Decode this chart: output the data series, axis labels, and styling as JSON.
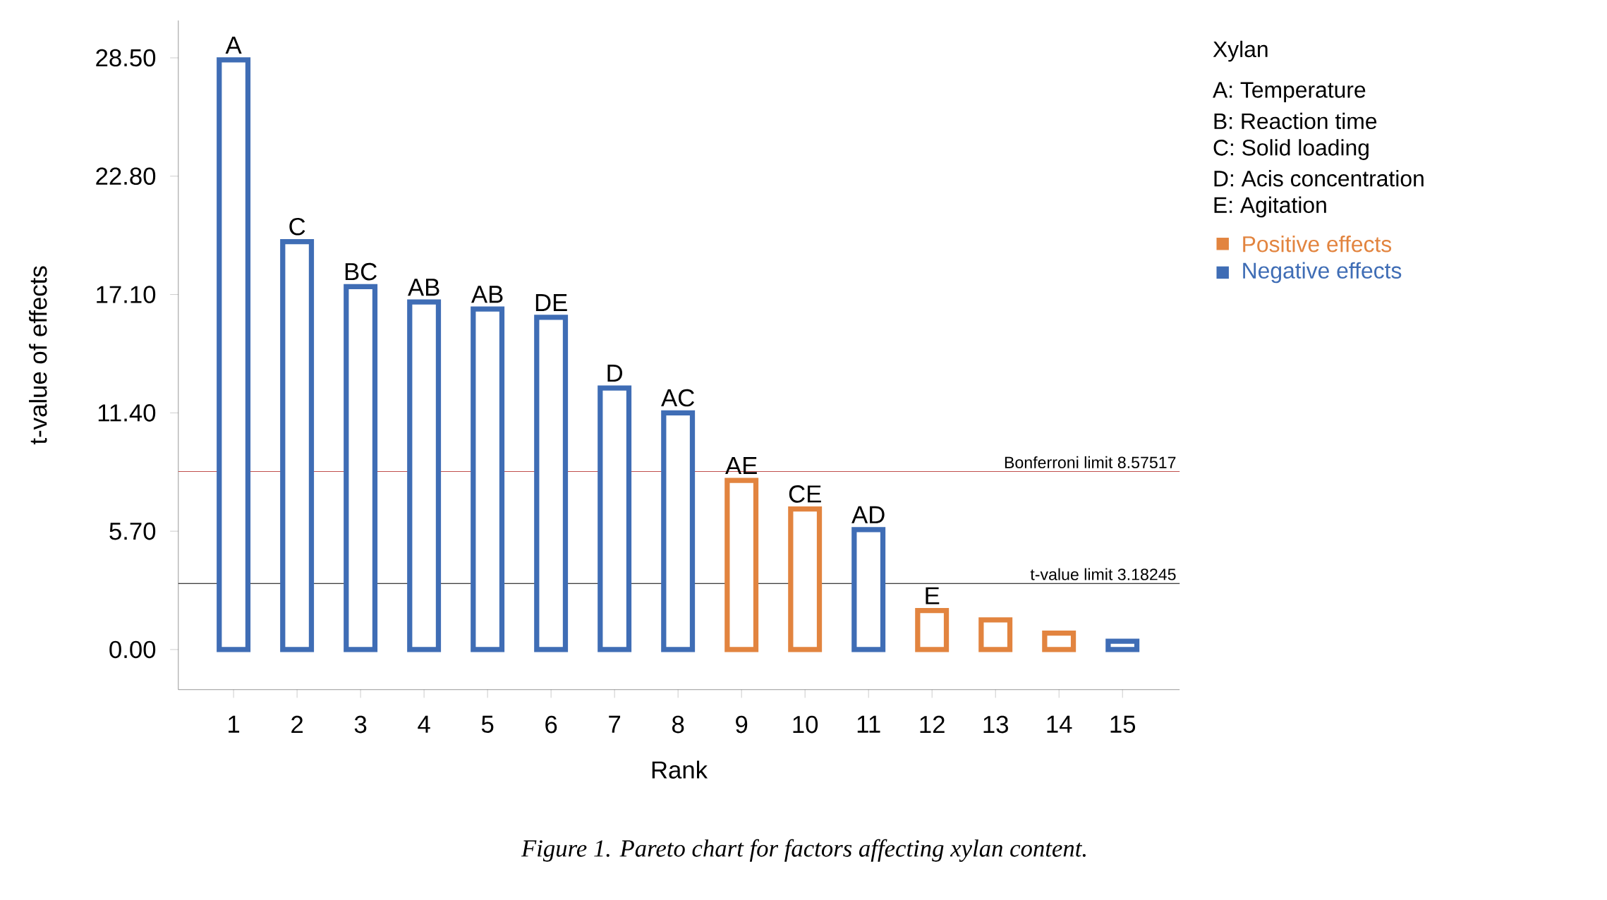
{
  "chart_data": {
    "type": "bar",
    "xlabel": "Rank",
    "ylabel": "t-value of effects",
    "legend_title": "Xylan",
    "x": [
      1,
      2,
      3,
      4,
      5,
      6,
      7,
      8,
      9,
      10,
      11,
      12,
      13,
      14,
      15
    ],
    "series": [
      {
        "name": "Positive effects",
        "color": "#e2843f",
        "values": [
          null,
          null,
          null,
          null,
          null,
          null,
          null,
          null,
          8.15,
          6.77,
          null,
          1.88,
          1.43,
          0.79,
          null
        ]
      },
      {
        "name": "Negative effects",
        "color": "#3f6db5",
        "values": [
          28.4,
          19.65,
          17.48,
          16.74,
          16.4,
          16.0,
          12.6,
          11.4,
          null,
          null,
          5.78,
          null,
          null,
          null,
          0.4
        ]
      }
    ],
    "xlim": [
      0.13,
      15.9
    ],
    "xticks": [
      1,
      2,
      3,
      4,
      5,
      6,
      7,
      8,
      9,
      10,
      11,
      12,
      13,
      14,
      15
    ],
    "ylim": [
      -1.93,
      30.3
    ],
    "yticks": [
      {
        "value": 0,
        "label": "0.00"
      },
      {
        "value": 5.7,
        "label": "5.70"
      },
      {
        "value": 11.4,
        "label": "11.40"
      },
      {
        "value": 17.1,
        "label": "17.10"
      },
      {
        "value": 22.8,
        "label": "22.80"
      },
      {
        "value": 28.5,
        "label": "28.50"
      }
    ],
    "ref_lines": [
      {
        "axis": "y",
        "value": 8.57517,
        "label": "Bonferroni limit 8.57517",
        "color": "#c0504d"
      },
      {
        "axis": "y",
        "value": 3.18245,
        "label": "t-value limit 3.18245",
        "color": "#000000"
      }
    ],
    "legend": "right",
    "annotations": [
      {
        "text": "A",
        "x": 1,
        "y": 28.4
      },
      {
        "text": "C",
        "x": 2,
        "y": 19.65
      },
      {
        "text": "BC",
        "x": 3,
        "y": 17.48
      },
      {
        "text": "AB",
        "x": 4,
        "y": 16.74
      },
      {
        "text": "AB",
        "x": 5,
        "y": 16.4
      },
      {
        "text": "DE",
        "x": 6,
        "y": 16.0
      },
      {
        "text": "D",
        "x": 7,
        "y": 12.6
      },
      {
        "text": "AC",
        "x": 8,
        "y": 11.4
      },
      {
        "text": "AE",
        "x": 9,
        "y": 8.15
      },
      {
        "text": "CE",
        "x": 10,
        "y": 6.77
      },
      {
        "text": "AD",
        "x": 11,
        "y": 5.78
      },
      {
        "text": "E",
        "x": 12,
        "y": 1.88
      },
      "A: Temperature",
      "B: Reaction time",
      "C: Solid loading",
      "D: Acis concentration",
      "E: Agitation",
      "Figure 1. Pareto chart for factors affecting xylan content."
    ]
  }
}
